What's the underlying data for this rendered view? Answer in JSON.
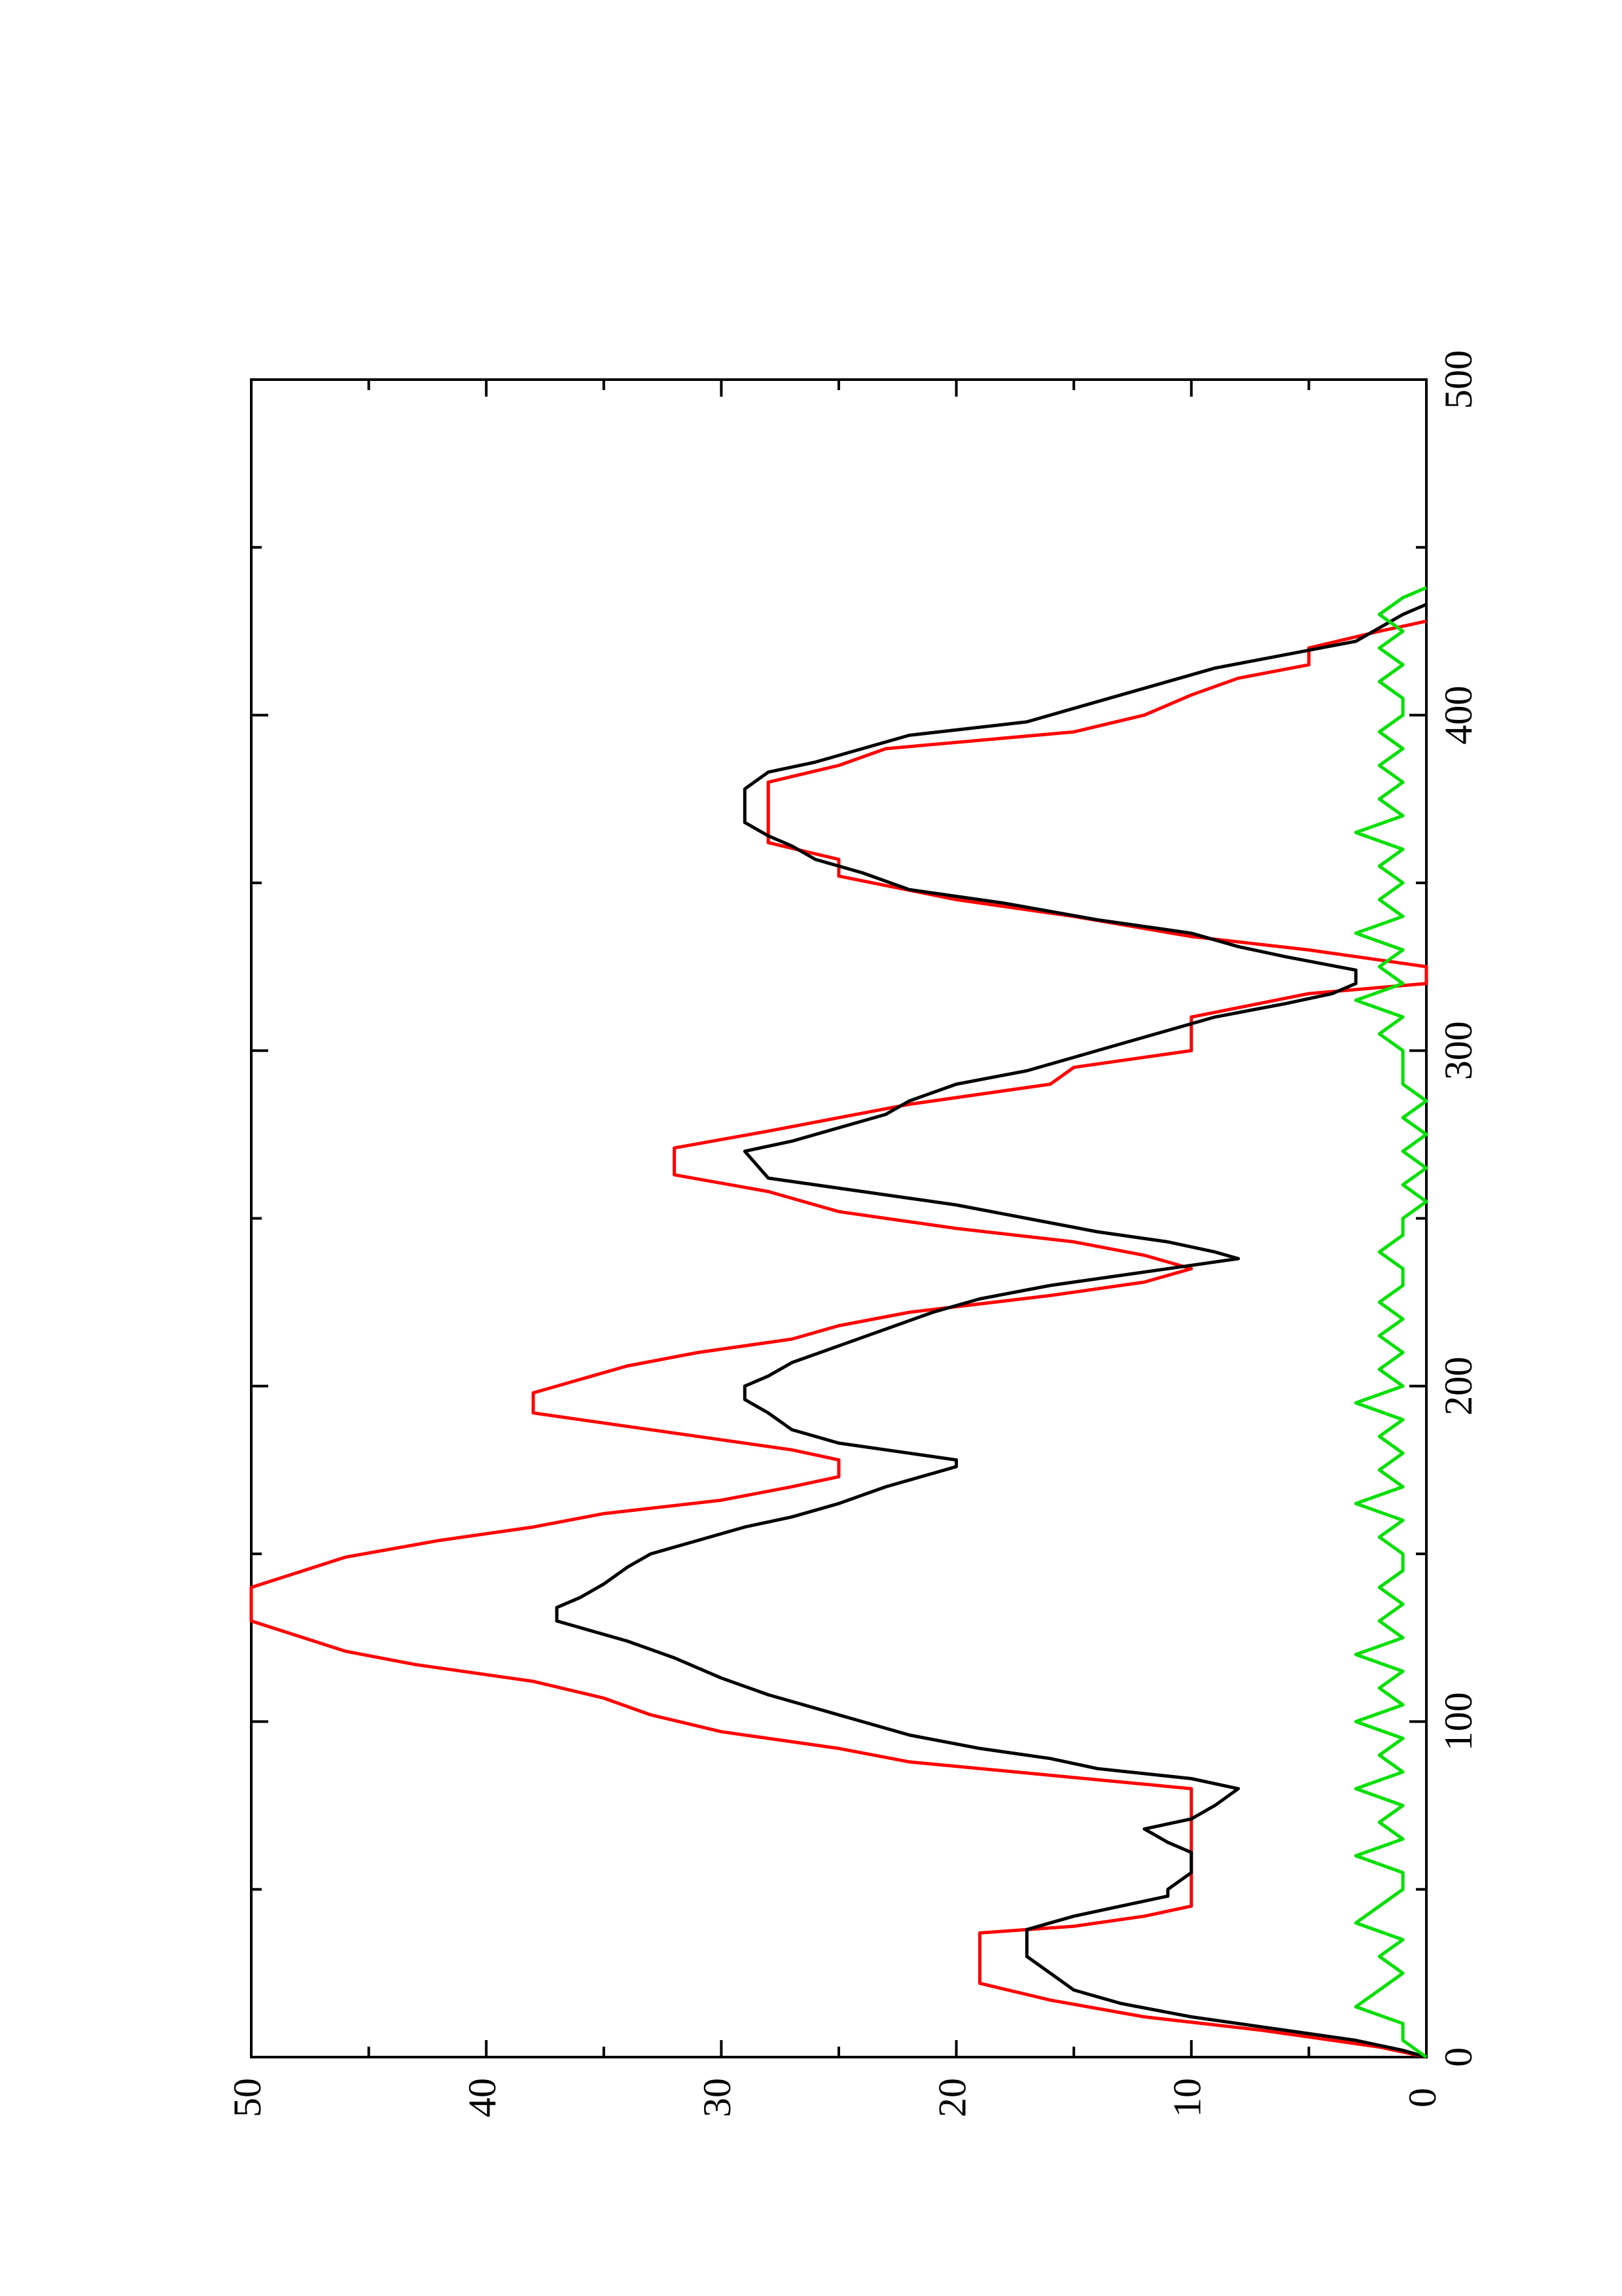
{
  "chart_data": {
    "type": "line",
    "orientation": "rotated-90-ccw",
    "title": "",
    "xlabel": "",
    "ylabel": "",
    "xlim": [
      0,
      500
    ],
    "ylim": [
      0,
      50
    ],
    "x_ticks": [
      0,
      100,
      200,
      300,
      400,
      500
    ],
    "y_ticks": [
      0,
      10,
      20,
      30,
      40,
      50
    ],
    "x_tick_labels": [
      "0",
      "100",
      "200",
      "300",
      "400",
      "500"
    ],
    "y_tick_labels": [
      "0",
      "10",
      "20",
      "30",
      "40",
      "50"
    ],
    "grid": false,
    "legend": "none",
    "series": [
      {
        "color": "#ff0000",
        "points": [
          [
            0,
            0
          ],
          [
            3,
            2
          ],
          [
            8,
            7
          ],
          [
            12,
            12
          ],
          [
            17,
            16
          ],
          [
            22,
            19
          ],
          [
            37,
            19
          ],
          [
            39,
            15
          ],
          [
            42,
            12
          ],
          [
            45,
            10
          ],
          [
            80,
            10
          ],
          [
            84,
            16
          ],
          [
            88,
            22
          ],
          [
            92,
            25
          ],
          [
            97,
            30
          ],
          [
            102,
            33
          ],
          [
            107,
            35
          ],
          [
            112,
            38
          ],
          [
            117,
            43
          ],
          [
            121,
            46
          ],
          [
            130,
            50
          ],
          [
            140,
            50
          ],
          [
            149,
            46
          ],
          [
            154,
            42
          ],
          [
            158,
            38
          ],
          [
            162,
            35
          ],
          [
            166,
            30
          ],
          [
            170,
            27
          ],
          [
            173,
            25
          ],
          [
            178,
            25
          ],
          [
            181,
            27
          ],
          [
            184,
            30
          ],
          [
            188,
            34
          ],
          [
            192,
            38
          ],
          [
            198,
            38
          ],
          [
            202,
            36
          ],
          [
            206,
            34
          ],
          [
            210,
            31
          ],
          [
            214,
            27
          ],
          [
            218,
            25
          ],
          [
            222,
            22
          ],
          [
            227,
            16
          ],
          [
            231,
            12
          ],
          [
            235,
            10
          ],
          [
            239,
            12
          ],
          [
            243,
            15
          ],
          [
            247,
            20
          ],
          [
            252,
            25
          ],
          [
            258,
            28
          ],
          [
            263,
            32
          ],
          [
            271,
            32
          ],
          [
            276,
            28
          ],
          [
            280,
            25
          ],
          [
            284,
            22
          ],
          [
            290,
            16
          ],
          [
            295,
            15
          ],
          [
            300,
            10
          ],
          [
            310,
            10
          ],
          [
            317,
            5
          ],
          [
            320,
            0
          ],
          [
            325,
            0
          ],
          [
            330,
            5
          ],
          [
            334,
            10
          ],
          [
            340,
            15
          ],
          [
            345,
            20
          ],
          [
            352,
            25
          ],
          [
            357,
            25
          ],
          [
            362,
            28
          ],
          [
            380,
            28
          ],
          [
            385,
            25
          ],
          [
            390,
            23
          ],
          [
            395,
            15
          ],
          [
            400,
            12
          ],
          [
            406,
            10
          ],
          [
            411,
            8
          ],
          [
            415,
            5
          ],
          [
            420,
            5
          ],
          [
            425,
            2
          ],
          [
            428,
            0
          ]
        ]
      },
      {
        "color": "#000000",
        "points": [
          [
            0,
            0
          ],
          [
            2,
            1
          ],
          [
            5,
            3
          ],
          [
            8,
            6
          ],
          [
            12,
            10
          ],
          [
            16,
            13
          ],
          [
            20,
            15
          ],
          [
            25,
            16
          ],
          [
            30,
            17
          ],
          [
            38,
            17
          ],
          [
            42,
            15
          ],
          [
            45,
            13
          ],
          [
            48,
            11
          ],
          [
            50,
            11
          ],
          [
            55,
            10
          ],
          [
            61,
            10
          ],
          [
            64,
            11
          ],
          [
            68,
            12
          ],
          [
            71,
            10
          ],
          [
            75,
            9
          ],
          [
            80,
            8
          ],
          [
            83,
            10
          ],
          [
            86,
            14
          ],
          [
            89,
            16
          ],
          [
            92,
            19
          ],
          [
            96,
            22
          ],
          [
            100,
            24
          ],
          [
            104,
            26
          ],
          [
            108,
            28
          ],
          [
            113,
            30
          ],
          [
            119,
            32
          ],
          [
            124,
            34
          ],
          [
            128,
            36
          ],
          [
            130,
            37
          ],
          [
            134,
            37
          ],
          [
            137,
            36
          ],
          [
            141,
            35
          ],
          [
            146,
            34
          ],
          [
            150,
            33
          ],
          [
            154,
            31
          ],
          [
            158,
            29
          ],
          [
            161,
            27
          ],
          [
            165,
            25
          ],
          [
            170,
            23
          ],
          [
            174,
            21
          ],
          [
            176,
            20
          ],
          [
            178,
            20
          ],
          [
            180,
            22
          ],
          [
            183,
            25
          ],
          [
            187,
            27
          ],
          [
            192,
            28
          ],
          [
            196,
            29
          ],
          [
            200,
            29
          ],
          [
            203,
            28
          ],
          [
            207,
            27
          ],
          [
            212,
            25
          ],
          [
            217,
            23
          ],
          [
            222,
            21
          ],
          [
            226,
            19
          ],
          [
            230,
            16
          ],
          [
            233,
            13
          ],
          [
            236,
            10
          ],
          [
            238,
            8
          ],
          [
            240,
            9
          ],
          [
            243,
            11
          ],
          [
            246,
            14
          ],
          [
            250,
            17
          ],
          [
            254,
            20
          ],
          [
            258,
            24
          ],
          [
            262,
            28
          ],
          [
            270,
            29
          ],
          [
            273,
            27
          ],
          [
            277,
            25
          ],
          [
            281,
            23
          ],
          [
            285,
            22
          ],
          [
            290,
            20
          ],
          [
            294,
            17
          ],
          [
            298,
            15
          ],
          [
            302,
            13
          ],
          [
            306,
            11
          ],
          [
            310,
            9
          ],
          [
            314,
            6
          ],
          [
            317,
            4
          ],
          [
            320,
            3
          ],
          [
            324,
            3
          ],
          [
            328,
            6
          ],
          [
            331,
            8
          ],
          [
            335,
            10
          ],
          [
            339,
            14
          ],
          [
            344,
            18
          ],
          [
            348,
            22
          ],
          [
            353,
            24
          ],
          [
            357,
            26
          ],
          [
            361,
            27
          ],
          [
            364,
            28
          ],
          [
            368,
            29
          ],
          [
            378,
            29
          ],
          [
            383,
            28
          ],
          [
            386,
            26
          ],
          [
            390,
            24
          ],
          [
            394,
            22
          ],
          [
            398,
            17
          ],
          [
            402,
            15
          ],
          [
            406,
            13
          ],
          [
            410,
            11
          ],
          [
            414,
            9
          ],
          [
            418,
            6
          ],
          [
            422,
            3
          ],
          [
            426,
            2
          ],
          [
            430,
            1
          ],
          [
            433,
            0
          ]
        ]
      },
      {
        "color": "#00e000",
        "points": [
          [
            0,
            0
          ],
          [
            5,
            1
          ],
          [
            10,
            1
          ],
          [
            15,
            3
          ],
          [
            20,
            2
          ],
          [
            25,
            1
          ],
          [
            30,
            2
          ],
          [
            35,
            1
          ],
          [
            40,
            3
          ],
          [
            45,
            2
          ],
          [
            50,
            1
          ],
          [
            55,
            1
          ],
          [
            60,
            3
          ],
          [
            65,
            1
          ],
          [
            70,
            2
          ],
          [
            75,
            1
          ],
          [
            80,
            3
          ],
          [
            85,
            1
          ],
          [
            90,
            2
          ],
          [
            95,
            1
          ],
          [
            100,
            3
          ],
          [
            105,
            1
          ],
          [
            110,
            2
          ],
          [
            115,
            1
          ],
          [
            120,
            3
          ],
          [
            125,
            1
          ],
          [
            130,
            2
          ],
          [
            135,
            1
          ],
          [
            140,
            2
          ],
          [
            145,
            1
          ],
          [
            150,
            1
          ],
          [
            155,
            2
          ],
          [
            160,
            1
          ],
          [
            165,
            3
          ],
          [
            170,
            1
          ],
          [
            175,
            2
          ],
          [
            180,
            1
          ],
          [
            185,
            2
          ],
          [
            190,
            1
          ],
          [
            195,
            3
          ],
          [
            200,
            1
          ],
          [
            205,
            2
          ],
          [
            210,
            1
          ],
          [
            215,
            2
          ],
          [
            220,
            1
          ],
          [
            225,
            2
          ],
          [
            230,
            1
          ],
          [
            235,
            1
          ],
          [
            240,
            2
          ],
          [
            245,
            1
          ],
          [
            250,
            1
          ],
          [
            255,
            0
          ],
          [
            260,
            1
          ],
          [
            265,
            0
          ],
          [
            270,
            1
          ],
          [
            275,
            0
          ],
          [
            280,
            1
          ],
          [
            285,
            0
          ],
          [
            290,
            1
          ],
          [
            295,
            1
          ],
          [
            300,
            1
          ],
          [
            305,
            2
          ],
          [
            310,
            1
          ],
          [
            315,
            3
          ],
          [
            320,
            1
          ],
          [
            325,
            2
          ],
          [
            330,
            1
          ],
          [
            335,
            3
          ],
          [
            340,
            1
          ],
          [
            345,
            2
          ],
          [
            350,
            1
          ],
          [
            355,
            2
          ],
          [
            360,
            1
          ],
          [
            365,
            3
          ],
          [
            370,
            1
          ],
          [
            375,
            2
          ],
          [
            380,
            1
          ],
          [
            385,
            2
          ],
          [
            390,
            1
          ],
          [
            395,
            2
          ],
          [
            400,
            1
          ],
          [
            405,
            1
          ],
          [
            410,
            2
          ],
          [
            415,
            1
          ],
          [
            420,
            2
          ],
          [
            425,
            1
          ],
          [
            430,
            2
          ],
          [
            435,
            1
          ],
          [
            438,
            0
          ]
        ]
      }
    ]
  }
}
